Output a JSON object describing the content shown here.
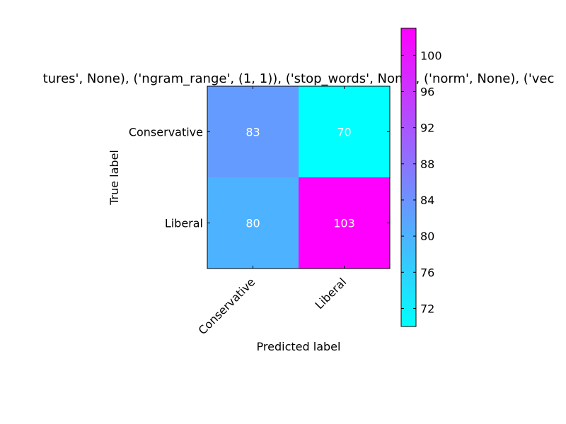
{
  "chart_data": {
    "type": "heatmap",
    "title": "tures', None), ('ngram_range', (1, 1)), ('stop_words', None), ('norm', None), ('vec",
    "xlabel": "Predicted label",
    "ylabel": "True label",
    "x_categories": [
      "Conservative",
      "Liberal"
    ],
    "y_categories": [
      "Conservative",
      "Liberal"
    ],
    "values": [
      [
        83,
        70
      ],
      [
        80,
        103
      ]
    ],
    "colormap": "cool",
    "color_range": [
      70,
      103
    ],
    "colorbar_ticks": [
      72,
      76,
      80,
      84,
      88,
      92,
      96,
      100
    ],
    "cell_text_color": "#ffffff",
    "colormap_low_color": "#00ffff",
    "colormap_high_color": "#ff00ff"
  }
}
